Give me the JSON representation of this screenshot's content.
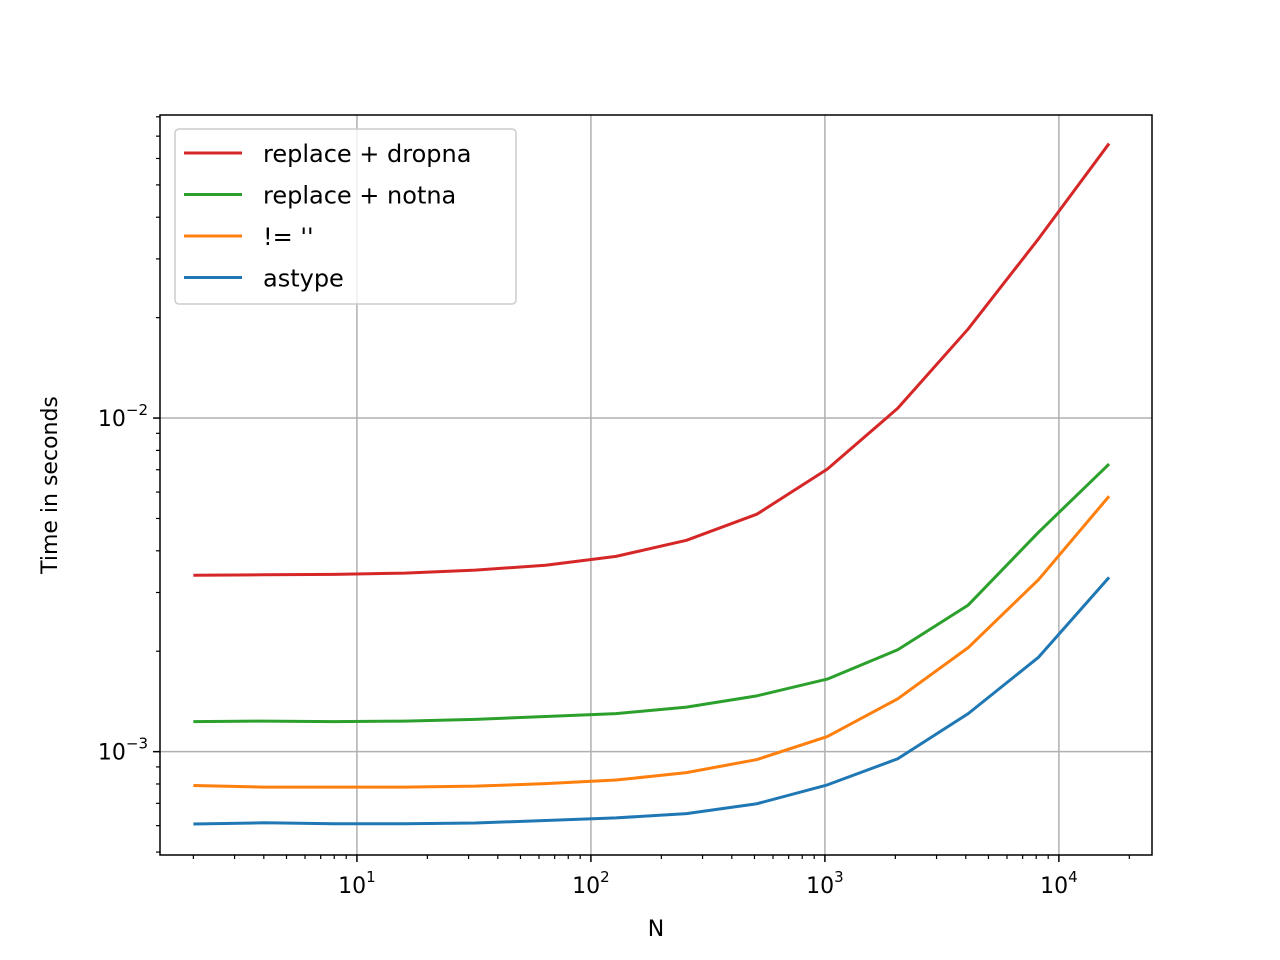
{
  "chart_data": {
    "type": "line",
    "xscale": "log",
    "yscale": "log",
    "xlabel": "N",
    "ylabel": "Time in seconds",
    "xlim": [
      1.44,
      25000
    ],
    "ylim": [
      0.00049,
      0.081
    ],
    "grid": true,
    "legend_location": "upper-left",
    "x_major_ticks": [
      {
        "value": 10,
        "label_base": "10",
        "label_exp": "1"
      },
      {
        "value": 100,
        "label_base": "10",
        "label_exp": "2"
      },
      {
        "value": 1000,
        "label_base": "10",
        "label_exp": "3"
      },
      {
        "value": 10000,
        "label_base": "10",
        "label_exp": "4"
      }
    ],
    "y_major_ticks": [
      {
        "value": 0.001,
        "label_base": "10",
        "label_exp": "−3"
      },
      {
        "value": 0.01,
        "label_base": "10",
        "label_exp": "−2"
      }
    ],
    "x": [
      2,
      4,
      8,
      16,
      32,
      64,
      128,
      256,
      512,
      1024,
      2048,
      4096,
      8192,
      16384
    ],
    "series": [
      {
        "name": "replace + dropna",
        "color": "#d62728",
        "values": [
          0.00338,
          0.00339,
          0.0034,
          0.00343,
          0.0035,
          0.00362,
          0.00385,
          0.0043,
          0.00515,
          0.00703,
          0.0107,
          0.0185,
          0.0345,
          0.0665
        ]
      },
      {
        "name": "replace + notna",
        "color": "#2ca02c",
        "values": [
          0.00123,
          0.001235,
          0.00123,
          0.001235,
          0.00125,
          0.001275,
          0.0013,
          0.00136,
          0.00147,
          0.00165,
          0.00202,
          0.00275,
          0.00455,
          0.00728
        ]
      },
      {
        "name": "!= ''",
        "color": "#ff7f0e",
        "values": [
          0.000792,
          0.000783,
          0.000783,
          0.000783,
          0.000788,
          0.000802,
          0.000822,
          0.000865,
          0.000947,
          0.00111,
          0.00144,
          0.00205,
          0.00328,
          0.00583
        ]
      },
      {
        "name": "astype",
        "color": "#1f77b4",
        "values": [
          0.000607,
          0.000612,
          0.000608,
          0.000608,
          0.000611,
          0.000622,
          0.000633,
          0.000652,
          0.000698,
          0.000795,
          0.000952,
          0.0013,
          0.00192,
          0.00333
        ]
      }
    ]
  }
}
